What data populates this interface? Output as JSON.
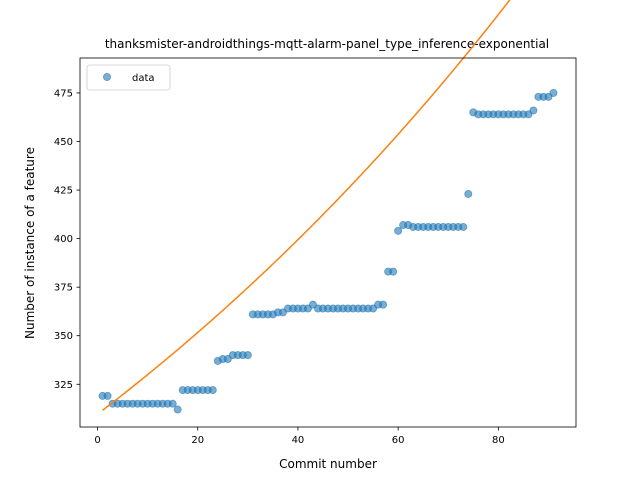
{
  "chart_data": {
    "type": "scatter",
    "title": "thanksmister-androidthings-mqtt-alarm-panel_type_inference-exponential",
    "xlabel": "Commit number",
    "ylabel": "Number of instance of a feature",
    "xlim": [
      -3.5,
      95.5
    ],
    "ylim": [
      303,
      493
    ],
    "xticks": [
      0,
      20,
      40,
      60,
      80
    ],
    "yticks": [
      325,
      350,
      375,
      400,
      425,
      450,
      475
    ],
    "grid": false,
    "legend": {
      "placement": "top-left",
      "entries": [
        "data"
      ]
    },
    "colors": {
      "data": "#1f77b4",
      "fit": "#ff7f0e"
    },
    "series": [
      {
        "name": "data",
        "kind": "points",
        "x": [
          1,
          2,
          3,
          4,
          5,
          6,
          7,
          8,
          9,
          10,
          11,
          12,
          13,
          14,
          15,
          16,
          17,
          18,
          19,
          20,
          21,
          22,
          23,
          24,
          25,
          26,
          27,
          28,
          29,
          30,
          31,
          32,
          33,
          34,
          35,
          36,
          37,
          38,
          39,
          40,
          41,
          42,
          43,
          44,
          45,
          46,
          47,
          48,
          49,
          50,
          51,
          52,
          53,
          54,
          55,
          56,
          57,
          58,
          59,
          60,
          61,
          62,
          63,
          64,
          65,
          66,
          67,
          68,
          69,
          70,
          71,
          72,
          73,
          74,
          75,
          76,
          77,
          78,
          79,
          80,
          81,
          82,
          83,
          84,
          85,
          86,
          87,
          88,
          89,
          90,
          91
        ],
        "y": [
          319,
          319,
          315,
          315,
          315,
          315,
          315,
          315,
          315,
          315,
          315,
          315,
          315,
          315,
          315,
          312,
          322,
          322,
          322,
          322,
          322,
          322,
          322,
          337,
          338,
          338,
          340,
          340,
          340,
          340,
          361,
          361,
          361,
          361,
          361,
          362,
          362,
          364,
          364,
          364,
          364,
          364,
          366,
          364,
          364,
          364,
          364,
          364,
          364,
          364,
          364,
          364,
          364,
          364,
          364,
          366,
          366,
          383,
          383,
          404,
          407,
          407,
          406,
          406,
          406,
          406,
          406,
          406,
          406,
          406,
          406,
          406,
          406,
          423,
          465,
          464,
          464,
          464,
          464,
          464,
          464,
          464,
          464,
          464,
          464,
          464,
          466,
          473,
          473,
          473,
          475
        ]
      },
      {
        "name": "",
        "kind": "line",
        "a": 309.6,
        "b": 0.00637,
        "x_range": [
          1,
          91
        ]
      }
    ]
  }
}
